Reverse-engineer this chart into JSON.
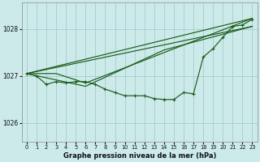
{
  "title": "Graphe pression niveau de la mer (hPa)",
  "bg_color": "#cceaea",
  "grid_color": "#aacccc",
  "line_color": "#1a5c1a",
  "x_ticks": [
    0,
    1,
    2,
    3,
    4,
    5,
    6,
    7,
    8,
    9,
    10,
    11,
    12,
    13,
    14,
    15,
    16,
    17,
    18,
    19,
    20,
    21,
    22,
    23
  ],
  "y_ticks": [
    1026,
    1027,
    1028
  ],
  "ylim": [
    1025.6,
    1028.55
  ],
  "xlim": [
    -0.5,
    23.5
  ],
  "line_straight1": {
    "x": [
      0,
      23
    ],
    "y": [
      1027.05,
      1028.22
    ]
  },
  "line_straight2": {
    "x": [
      0,
      23
    ],
    "y": [
      1027.05,
      1028.05
    ]
  },
  "line_cross": {
    "x": [
      0,
      3,
      6,
      23
    ],
    "y": [
      1027.05,
      1027.05,
      1026.85,
      1028.22
    ]
  },
  "line_cross2": {
    "x": [
      0,
      6,
      14,
      23
    ],
    "y": [
      1027.05,
      1026.78,
      1027.55,
      1028.05
    ]
  },
  "line_measured": [
    1027.05,
    1027.0,
    1026.82,
    1026.88,
    1026.85,
    1026.88,
    1026.88,
    1026.82,
    1026.72,
    1026.65,
    1026.58,
    1026.58,
    1026.58,
    1026.52,
    1026.5,
    1026.5,
    1026.65,
    1026.62,
    1027.4,
    1027.58,
    1027.82,
    1028.05,
    1028.08,
    1028.2
  ]
}
